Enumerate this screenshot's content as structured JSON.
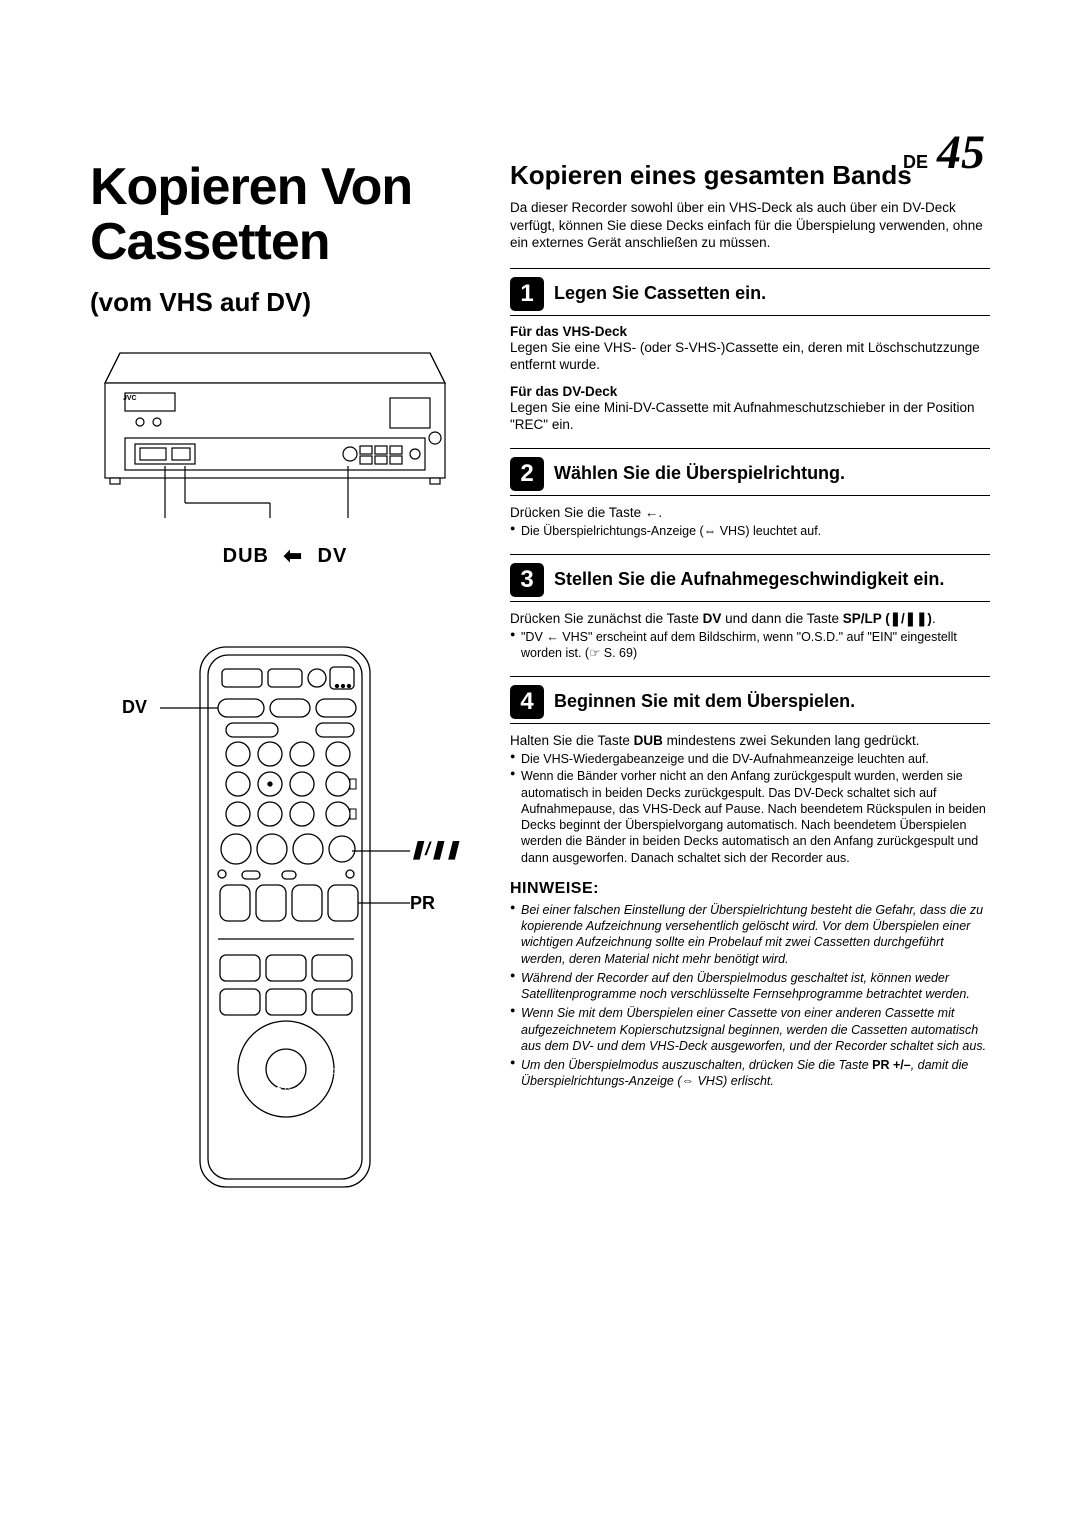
{
  "header": {
    "label": "DE",
    "page_number": "45"
  },
  "left": {
    "main_title_line1": "Kopieren Von",
    "main_title_line2": "Cassetten",
    "subtitle": "(vom VHS auf DV)",
    "dub_label": "DUB",
    "dv_label_top": "DV",
    "dv_label_remote": "DV",
    "playpause_label": "❚/❚❚",
    "pr_label": "PR",
    "jvc_label": "JVC"
  },
  "right": {
    "section_title": "Kopieren eines gesamten Bands",
    "intro": "Da dieser Recorder sowohl über ein VHS-Deck als auch über ein DV-Deck verfügt, können Sie diese Decks einfach für die Überspielung verwenden, ohne ein externes Gerät anschließen zu müssen.",
    "steps": [
      {
        "num": "1",
        "title": "Legen Sie Cassetten ein.",
        "blocks": [
          {
            "subhead": "Für das VHS-Deck",
            "text": "Legen Sie eine VHS- (oder S-VHS-)Cassette ein, deren mit Löschschutzzunge entfernt wurde."
          },
          {
            "subhead": "Für das DV-Deck",
            "text": "Legen Sie eine Mini-DV-Cassette mit Aufnahmeschutzschieber in der Position \"REC\" ein."
          }
        ]
      },
      {
        "num": "2",
        "title": "Wählen Sie die Überspielrichtung.",
        "text": "Drücken Sie die Taste ←.",
        "bullets": [
          "Die Überspielrichtungs-Anzeige (⇔ VHS) leuchtet auf."
        ]
      },
      {
        "num": "3",
        "title": "Stellen Sie die Aufnahmegeschwindigkeit ein.",
        "text_html": "Drücken Sie zunächst die Taste <b>DV</b> und dann die Taste <b>SP/LP (❚/❚❚)</b>.",
        "bullets": [
          "\"DV ← VHS\" erscheint auf dem Bildschirm, wenn \"O.S.D.\" auf \"EIN\" eingestellt worden ist. (☞ S. 69)"
        ]
      },
      {
        "num": "4",
        "title": "Beginnen Sie mit dem Überspielen.",
        "text_html": "Halten Sie die Taste <b>DUB</b> mindestens zwei Sekunden lang gedrückt.",
        "bullets": [
          "Die VHS-Wiedergabeanzeige und die DV-Aufnahmeanzeige leuchten auf.",
          "Wenn die Bänder vorher nicht an den Anfang zurückgespult wurden, werden sie automatisch in beiden Decks zurückgespult. Das DV-Deck schaltet sich auf Aufnahmepause, das VHS-Deck auf Pause. Nach beendetem Rückspulen in beiden Decks beginnt der Überspielvorgang automatisch. Nach beendetem Überspielen werden die Bänder in beiden Decks automatisch an den Anfang zurückgespult und dann ausgeworfen. Danach schaltet sich der Recorder aus."
        ]
      }
    ],
    "hinweise_title": "HINWEISE:",
    "hinweise": [
      "Bei einer falschen Einstellung der Überspielrichtung besteht die Gefahr, dass die zu kopierende Aufzeichnung versehentlich gelöscht wird. Vor dem Überspielen einer wichtigen Aufzeichnung sollte ein Probelauf mit zwei Cassetten durchgeführt werden, deren Material nicht mehr benötigt wird.",
      "Während der Recorder auf den Überspielmodus geschaltet ist, können weder Satellitenprogramme noch verschlüsselte Fernsehprogramme betrachtet werden.",
      "Wenn Sie mit dem Überspielen einer Cassette von einer anderen Cassette mit aufgezeichnetem Kopierschutzsignal beginnen, werden die Cassetten automatisch aus dem DV- und dem VHS-Deck ausgeworfen, und der Recorder schaltet sich aus.",
      "Um den Überspielmodus auszuschalten, drücken Sie die Taste <b>PR +/–</b>, damit die Überspielrichtungs-Anzeige (⇔ VHS) erlischt."
    ]
  },
  "colors": {
    "fg": "#000000",
    "bg": "#ffffff",
    "illustration_stroke": "#000000",
    "illustration_fill": "#ffffff"
  }
}
